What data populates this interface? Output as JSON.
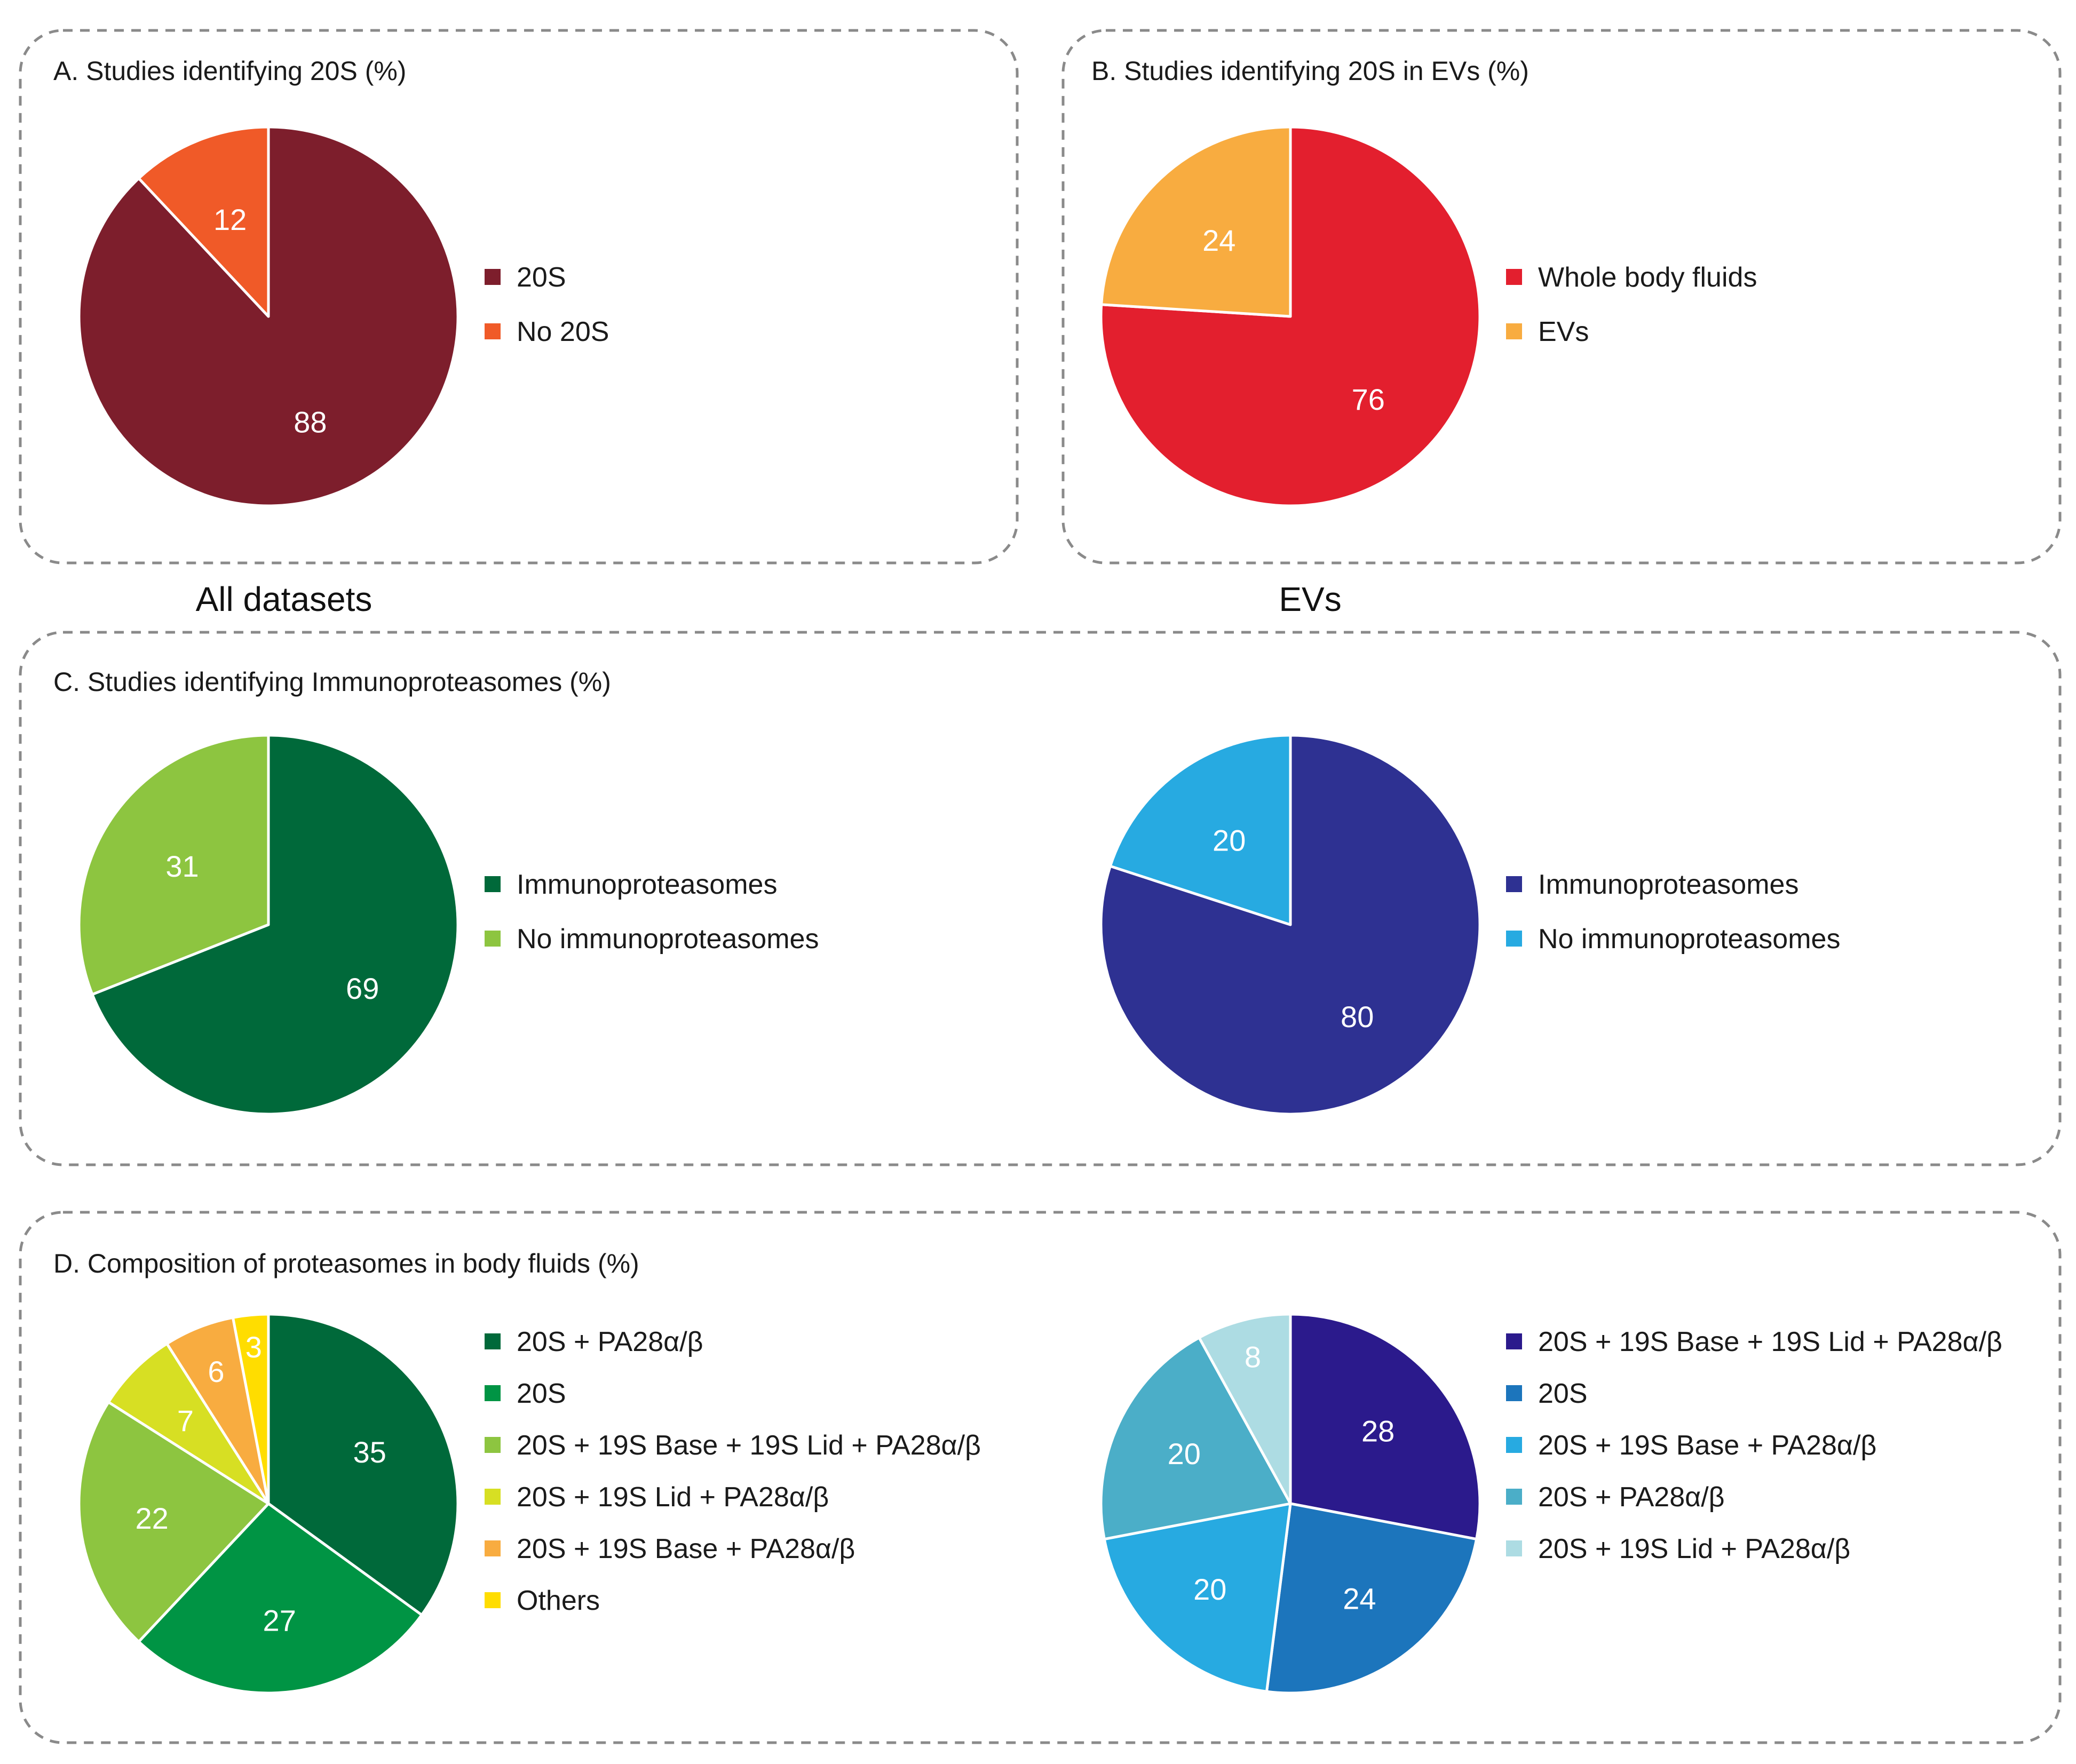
{
  "section_labels": {
    "all": "All datasets",
    "evs": "EVs"
  },
  "panels": {
    "A": {
      "title": "A. Studies identifying 20S (%)"
    },
    "B": {
      "title": "B. Studies identifying 20S in EVs (%)"
    },
    "C": {
      "title": "C. Studies identifying Immunoproteasomes (%)"
    },
    "D": {
      "title": "D. Composition of proteasomes in body fluids (%)"
    }
  },
  "chart_data": [
    {
      "id": "A",
      "type": "pie",
      "title": "A. Studies identifying 20S (%)",
      "categories": [
        "20S",
        "No 20S"
      ],
      "values": [
        88,
        12
      ],
      "colors": [
        "#7D1E2C",
        "#F05A28"
      ],
      "legend": "right"
    },
    {
      "id": "B",
      "type": "pie",
      "title": "B. Studies identifying 20S in EVs (%)",
      "categories": [
        "Whole body fluids",
        "EVs"
      ],
      "values": [
        76,
        24
      ],
      "colors": [
        "#E31F2E",
        "#F8AC40"
      ],
      "legend": "right"
    },
    {
      "id": "C1",
      "type": "pie",
      "title": "C. Studies identifying Immunoproteasomes (%)",
      "subset": "All datasets",
      "categories": [
        "Immunoproteasomes",
        "No immunoproteasomes"
      ],
      "values": [
        69,
        31
      ],
      "colors": [
        "#00693A",
        "#8DC540"
      ],
      "legend": "right"
    },
    {
      "id": "C2",
      "type": "pie",
      "title": "C. Studies identifying Immunoproteasomes (%)",
      "subset": "EVs",
      "categories": [
        "Immunoproteasomes",
        "No immunoproteasomes"
      ],
      "values": [
        80,
        20
      ],
      "colors": [
        "#2E3192",
        "#27AAE1"
      ],
      "legend": "right"
    },
    {
      "id": "D1",
      "type": "pie",
      "title": "D. Composition of proteasomes in body fluids (%)",
      "subset": "All datasets",
      "categories": [
        "20S +  PA28α/β",
        "20S",
        "20S + 19S Base + 19S Lid + PA28α/β",
        "20S + 19S Lid + PA28α/β",
        "20S + 19S Base + PA28α/β",
        "Others"
      ],
      "values": [
        35,
        27,
        22,
        7,
        6,
        3
      ],
      "colors": [
        "#00693A",
        "#009444",
        "#8DC540",
        "#D7DF23",
        "#F8AC40",
        "#FFDD00"
      ],
      "legend": "right"
    },
    {
      "id": "D2",
      "type": "pie",
      "title": "D. Composition of proteasomes in body fluids (%)",
      "subset": "EVs",
      "categories": [
        "20S + 19S Base + 19S Lid + PA28α/β",
        "20S",
        "20S + 19S Base + PA28α/β",
        "20S + PA28α/β",
        "20S + 19S Lid + PA28α/β"
      ],
      "values": [
        28,
        24,
        20,
        20,
        8
      ],
      "colors": [
        "#2B1A8C",
        "#1C75BC",
        "#27AAE1",
        "#4BAEC8",
        "#ADDCE3"
      ],
      "legend": "right"
    }
  ]
}
